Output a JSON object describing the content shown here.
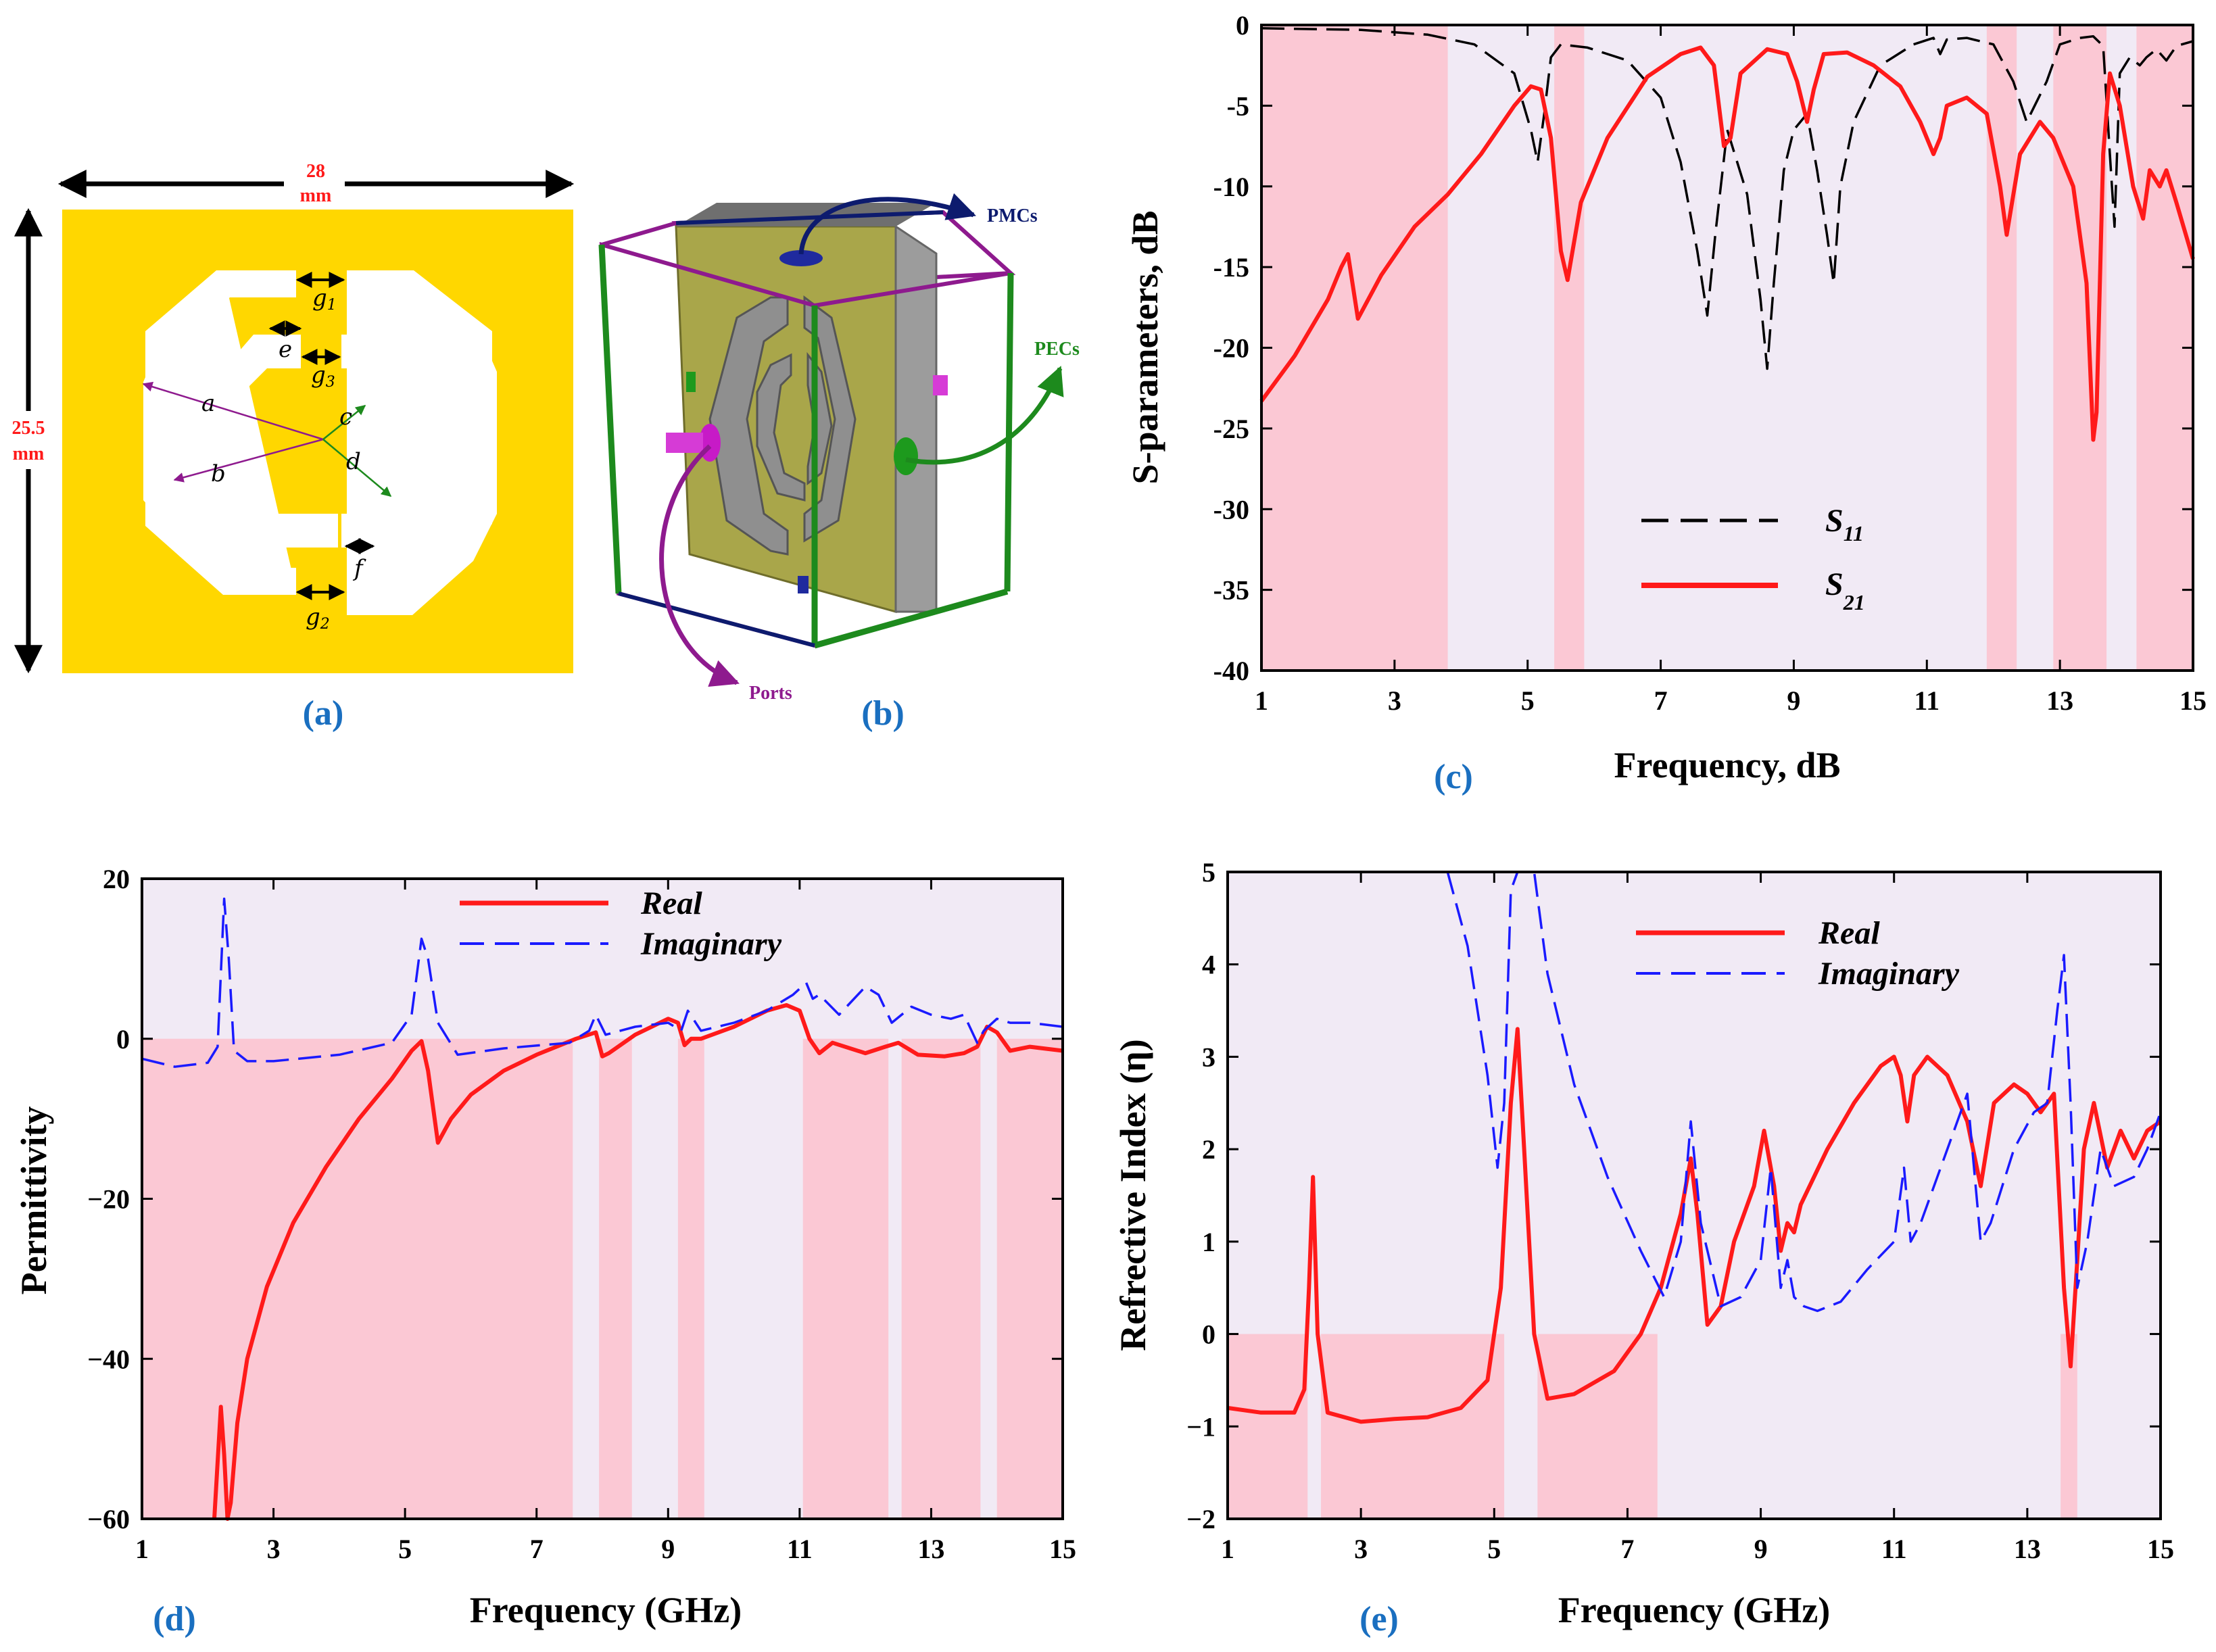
{
  "colors": {
    "gold": "#ffd700",
    "slot": "#ffffff",
    "band_pink": "#fbc8d4",
    "bg_lavender": "#f1eaf5",
    "real": "#ff1a1a",
    "imag": "#1a1aff",
    "s11": "#000000",
    "pmc": "#0d1b6e",
    "pec": "#1d8a1d",
    "port": "#8e1a8e",
    "panel_label": "#1a6fc0"
  },
  "panel_a": {
    "label": "(a)",
    "width_label": "28",
    "width_unit": "mm",
    "height_label": "25.5",
    "height_unit": "mm",
    "dims": {
      "g1": "g",
      "g1_sub": "1",
      "g2": "g",
      "g2_sub": "2",
      "g3": "g",
      "g3_sub": "3",
      "a": "a",
      "b": "b",
      "c": "c",
      "d": "d",
      "e": "e",
      "f": "f"
    }
  },
  "panel_b": {
    "label": "(b)",
    "pmcs": "PMCs",
    "pecs": "PECs",
    "ports": "Ports"
  },
  "chart_data": [
    {
      "id": "c",
      "panel_label": "(c)",
      "type": "line",
      "xlabel": "Frequency, dB",
      "ylabel": "S-parameters, dB",
      "xlim": [
        1,
        15
      ],
      "ylim": [
        -40,
        0
      ],
      "xticks": [
        "1",
        "3",
        "5",
        "7",
        "9",
        "11",
        "13",
        "15"
      ],
      "yticks": [
        "0",
        "-5",
        "-10",
        "-15",
        "-20",
        "-25",
        "-30",
        "-35",
        "-40"
      ],
      "legend": [
        {
          "name": "S",
          "sub": "11",
          "style": "dashed",
          "color": "#000000"
        },
        {
          "name": "S",
          "sub": "21",
          "style": "solid",
          "color": "#ff1a1a"
        }
      ],
      "bands": [
        [
          1,
          3.8
        ],
        [
          5.4,
          5.85
        ],
        [
          11.9,
          12.35
        ],
        [
          12.9,
          13.7
        ],
        [
          14.15,
          15
        ]
      ],
      "series": [
        {
          "name": "S11",
          "style": "dashed",
          "color": "#000000",
          "x": [
            1,
            2.5,
            3.5,
            4.2,
            4.8,
            5.05,
            5.15,
            5.25,
            5.35,
            5.5,
            5.9,
            6.5,
            7.0,
            7.3,
            7.55,
            7.7,
            7.82,
            8.0,
            8.3,
            8.5,
            8.6,
            8.7,
            8.85,
            9.0,
            9.2,
            9.35,
            9.5,
            9.6,
            9.7,
            9.9,
            10.3,
            10.8,
            11.1,
            11.2,
            11.3,
            11.6,
            12.0,
            12.3,
            12.5,
            12.8,
            13.0,
            13.3,
            13.5,
            13.65,
            13.75,
            13.82,
            13.9,
            14.05,
            14.2,
            14.3,
            14.45,
            14.6,
            14.75,
            15
          ],
          "values": [
            -0.2,
            -0.3,
            -0.6,
            -1.2,
            -3.0,
            -6.5,
            -8.5,
            -5.5,
            -2.0,
            -1.2,
            -1.4,
            -2.2,
            -4.5,
            -8.5,
            -14,
            -18,
            -13,
            -6.5,
            -10.5,
            -17,
            -21.3,
            -16,
            -9,
            -6.5,
            -5.5,
            -9,
            -13,
            -16,
            -10,
            -6,
            -2.5,
            -1.2,
            -0.8,
            -1.8,
            -0.9,
            -0.8,
            -1.2,
            -3.5,
            -6.0,
            -3.5,
            -1.2,
            -0.8,
            -0.7,
            -1.3,
            -8,
            -12.5,
            -3,
            -2,
            -2.5,
            -2.0,
            -1.5,
            -2.2,
            -1.3,
            -1.0
          ]
        },
        {
          "name": "S21",
          "style": "solid",
          "color": "#ff1a1a",
          "x": [
            1,
            1.5,
            2.0,
            2.2,
            2.3,
            2.45,
            2.8,
            3.3,
            3.8,
            4.3,
            4.8,
            5.05,
            5.2,
            5.35,
            5.5,
            5.6,
            5.8,
            6.2,
            6.8,
            7.3,
            7.6,
            7.8,
            7.95,
            8.05,
            8.2,
            8.6,
            8.9,
            9.05,
            9.2,
            9.3,
            9.45,
            9.8,
            10.2,
            10.6,
            10.9,
            11.1,
            11.2,
            11.3,
            11.6,
            11.9,
            12.1,
            12.2,
            12.4,
            12.7,
            12.9,
            13.2,
            13.4,
            13.5,
            13.55,
            13.65,
            13.75,
            13.9,
            14.1,
            14.25,
            14.35,
            14.5,
            14.6,
            14.75,
            15
          ],
          "values": [
            -23.3,
            -20.5,
            -17,
            -15,
            -14.2,
            -18.2,
            -15.5,
            -12.5,
            -10.5,
            -8,
            -5,
            -3.8,
            -4.0,
            -7,
            -14,
            -15.8,
            -11,
            -7,
            -3.2,
            -1.8,
            -1.4,
            -2.5,
            -7.5,
            -7,
            -3,
            -1.5,
            -1.8,
            -3.5,
            -6,
            -4,
            -1.8,
            -1.7,
            -2.5,
            -3.8,
            -6,
            -8,
            -7,
            -5,
            -4.5,
            -5.5,
            -10,
            -13,
            -8,
            -6,
            -7,
            -10,
            -16,
            -25.7,
            -24,
            -8,
            -3.0,
            -5,
            -10,
            -12,
            -9,
            -10,
            -9,
            -11,
            -14.5
          ]
        }
      ]
    },
    {
      "id": "d",
      "panel_label": "(d)",
      "type": "line",
      "xlabel": "Frequency (GHz)",
      "ylabel": "Permittivity",
      "xlim": [
        1,
        15
      ],
      "ylim": [
        -60,
        20
      ],
      "xticks": [
        "1",
        "3",
        "5",
        "7",
        "9",
        "11",
        "13",
        "15"
      ],
      "yticks": [
        "20",
        "0",
        "−20",
        "−40",
        "−60"
      ],
      "legend": [
        {
          "name": "Real",
          "style": "solid",
          "color": "#ff1a1a"
        },
        {
          "name": "Imaginary",
          "style": "dashed",
          "color": "#1a1aff"
        }
      ],
      "bands": [
        [
          1,
          7.55
        ],
        [
          7.95,
          8.45
        ],
        [
          9.15,
          9.55
        ],
        [
          11.05,
          12.35
        ],
        [
          12.55,
          13.75
        ],
        [
          14.0,
          15
        ]
      ],
      "series": [
        {
          "name": "Real",
          "style": "solid",
          "color": "#ff1a1a",
          "x": [
            2.1,
            2.2,
            2.25,
            2.3,
            2.35,
            2.45,
            2.6,
            2.9,
            3.3,
            3.8,
            4.3,
            4.8,
            5.1,
            5.25,
            5.35,
            5.5,
            5.7,
            6.0,
            6.5,
            7.0,
            7.6,
            7.9,
            8.0,
            8.1,
            8.5,
            9.0,
            9.15,
            9.25,
            9.35,
            9.5,
            10.0,
            10.5,
            10.8,
            11.0,
            11.15,
            11.3,
            11.5,
            12.0,
            12.3,
            12.5,
            12.8,
            13.2,
            13.5,
            13.7,
            13.85,
            14.0,
            14.2,
            14.5,
            15
          ],
          "values": [
            -60,
            -46,
            -52,
            -60,
            -58,
            -48,
            -40,
            -31,
            -23,
            -16,
            -10,
            -5,
            -1.5,
            -0.3,
            -4,
            -13,
            -10,
            -7,
            -4,
            -2,
            0,
            0.8,
            -2.2,
            -1.8,
            0.5,
            2.5,
            2,
            -0.8,
            0,
            0,
            1.5,
            3.5,
            4.2,
            3.5,
            0,
            -1.8,
            -0.5,
            -1.8,
            -1,
            -0.5,
            -2,
            -2.2,
            -1.8,
            -1,
            1.5,
            0.8,
            -1.5,
            -1,
            -1.5
          ]
        },
        {
          "name": "Imaginary",
          "style": "dashed",
          "color": "#1a1aff",
          "x": [
            1,
            1.5,
            2.0,
            2.15,
            2.25,
            2.32,
            2.4,
            2.6,
            3.0,
            4.0,
            4.8,
            5.1,
            5.25,
            5.35,
            5.5,
            5.8,
            6.5,
            7.5,
            7.8,
            7.9,
            8.05,
            8.5,
            9.0,
            9.2,
            9.3,
            9.5,
            10.0,
            10.5,
            10.9,
            11.1,
            11.2,
            11.3,
            11.6,
            12.0,
            12.2,
            12.4,
            12.7,
            13.0,
            13.3,
            13.5,
            13.7,
            13.8,
            14.0,
            14.2,
            14.5,
            15
          ],
          "values": [
            -2.5,
            -3.5,
            -3,
            -1,
            17.5,
            10,
            -1.5,
            -2.8,
            -2.8,
            -2,
            -0.5,
            3,
            12.5,
            10,
            2,
            -2,
            -1.2,
            -0.5,
            1,
            3,
            0.5,
            1.5,
            2,
            1,
            3.5,
            1,
            2,
            3.5,
            5.5,
            7,
            5,
            5.5,
            3,
            6.5,
            5.5,
            2,
            4,
            3,
            2.5,
            3,
            -0.5,
            1,
            2.5,
            2,
            2,
            1.5
          ]
        }
      ]
    },
    {
      "id": "e",
      "panel_label": "(e)",
      "type": "line",
      "xlabel": "Frequency (GHz)",
      "ylabel": "Refrective Index (η)",
      "xlim": [
        1,
        15
      ],
      "ylim": [
        -2,
        5
      ],
      "xticks": [
        "1",
        "3",
        "5",
        "7",
        "9",
        "11",
        "13",
        "15"
      ],
      "yticks": [
        "5",
        "4",
        "3",
        "2",
        "1",
        "0",
        "−1",
        "−2"
      ],
      "legend": [
        {
          "name": "Real",
          "style": "solid",
          "color": "#ff1a1a"
        },
        {
          "name": "Imaginary",
          "style": "dashed",
          "color": "#1a1aff"
        }
      ],
      "bands": [
        [
          1,
          2.2
        ],
        [
          2.4,
          5.15
        ],
        [
          5.65,
          7.45
        ],
        [
          13.5,
          13.75
        ]
      ],
      "series": [
        {
          "name": "Real",
          "style": "solid",
          "color": "#ff1a1a",
          "x": [
            1,
            1.5,
            2.0,
            2.15,
            2.22,
            2.28,
            2.35,
            2.5,
            3.0,
            3.5,
            4.0,
            4.5,
            4.9,
            5.1,
            5.25,
            5.35,
            5.45,
            5.6,
            5.8,
            6.2,
            6.8,
            7.2,
            7.5,
            7.8,
            7.95,
            8.05,
            8.2,
            8.4,
            8.6,
            8.9,
            9.05,
            9.2,
            9.3,
            9.4,
            9.5,
            9.6,
            10.0,
            10.4,
            10.8,
            11.0,
            11.1,
            11.2,
            11.3,
            11.5,
            11.8,
            12.1,
            12.3,
            12.5,
            12.8,
            13.0,
            13.2,
            13.4,
            13.55,
            13.65,
            13.75,
            13.85,
            14.0,
            14.2,
            14.4,
            14.6,
            14.8,
            15
          ],
          "values": [
            -0.8,
            -0.85,
            -0.85,
            -0.6,
            0.5,
            1.7,
            0,
            -0.85,
            -0.95,
            -0.92,
            -0.9,
            -0.8,
            -0.5,
            0.5,
            2.5,
            3.3,
            2.0,
            0,
            -0.7,
            -0.65,
            -0.4,
            0,
            0.5,
            1.3,
            1.9,
            1.3,
            0.1,
            0.3,
            1.0,
            1.6,
            2.2,
            1.6,
            0.9,
            1.2,
            1.1,
            1.4,
            2.0,
            2.5,
            2.9,
            3.0,
            2.8,
            2.3,
            2.8,
            3.0,
            2.8,
            2.3,
            1.6,
            2.5,
            2.7,
            2.6,
            2.4,
            2.6,
            0.5,
            -0.35,
            0.8,
            2.0,
            2.5,
            1.8,
            2.2,
            1.9,
            2.2,
            2.3
          ]
        },
        {
          "name": "Imaginary",
          "style": "dashed",
          "color": "#1a1aff",
          "x": [
            4.3,
            4.6,
            4.9,
            5.05,
            5.15,
            5.25,
            5.35,
            5.45,
            5.6,
            5.8,
            6.2,
            6.7,
            7.2,
            7.55,
            7.8,
            7.95,
            8.1,
            8.4,
            8.7,
            9.0,
            9.15,
            9.3,
            9.4,
            9.5,
            9.65,
            9.85,
            10.2,
            10.6,
            11.0,
            11.15,
            11.25,
            11.4,
            11.8,
            12.1,
            12.3,
            12.45,
            12.8,
            13.1,
            13.3,
            13.45,
            13.55,
            13.65,
            13.75,
            13.9,
            14.1,
            14.3,
            14.6,
            14.8,
            15
          ],
          "values": [
            5,
            4.2,
            2.8,
            1.8,
            2.5,
            4.8,
            5,
            5,
            5,
            3.9,
            2.7,
            1.7,
            0.9,
            0.4,
            1.0,
            2.3,
            1.2,
            0.3,
            0.4,
            0.8,
            1.8,
            0.5,
            0.8,
            0.4,
            0.3,
            0.25,
            0.35,
            0.7,
            1.0,
            1.8,
            1.0,
            1.2,
            2.0,
            2.6,
            1.0,
            1.2,
            2.0,
            2.4,
            2.5,
            3.5,
            4.1,
            2.5,
            0.5,
            1.0,
            2.0,
            1.6,
            1.7,
            2.0,
            2.4
          ]
        }
      ]
    }
  ]
}
